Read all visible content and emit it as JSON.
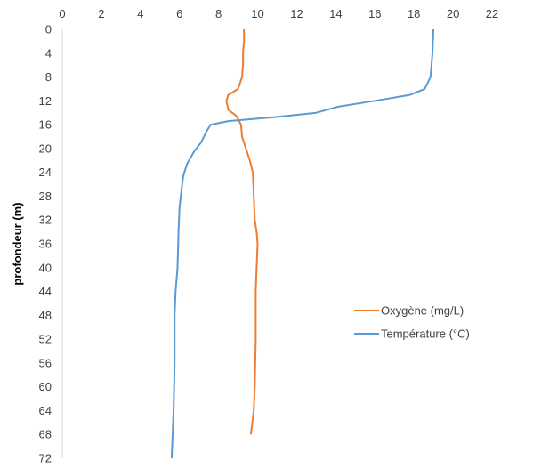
{
  "chart_data": {
    "type": "line",
    "title": "",
    "xlabel": "",
    "ylabel": "profondeur (m)",
    "xlim": [
      0,
      22
    ],
    "ylim": [
      0,
      72
    ],
    "y_inverted": true,
    "x_axis_position": "top",
    "grid": false,
    "legend_position": "right-middle",
    "x_ticks": [
      "0",
      "2",
      "4",
      "6",
      "8",
      "10",
      "12",
      "14",
      "16",
      "18",
      "20",
      "22"
    ],
    "y_ticks": [
      "0",
      "4",
      "8",
      "12",
      "16",
      "20",
      "24",
      "28",
      "32",
      "36",
      "40",
      "44",
      "48",
      "52",
      "56",
      "60",
      "64",
      "68",
      "72"
    ],
    "series": [
      {
        "name": "Oxygène (mg/L)",
        "color": "#ED7D31",
        "points": [
          {
            "x": 9.3,
            "y": 0
          },
          {
            "x": 9.3,
            "y": 2
          },
          {
            "x": 9.25,
            "y": 4
          },
          {
            "x": 9.25,
            "y": 6
          },
          {
            "x": 9.2,
            "y": 8
          },
          {
            "x": 9.0,
            "y": 10
          },
          {
            "x": 8.5,
            "y": 11
          },
          {
            "x": 8.4,
            "y": 12
          },
          {
            "x": 8.5,
            "y": 13.5
          },
          {
            "x": 8.9,
            "y": 14.5
          },
          {
            "x": 9.15,
            "y": 16
          },
          {
            "x": 9.2,
            "y": 18
          },
          {
            "x": 9.4,
            "y": 20
          },
          {
            "x": 9.6,
            "y": 22
          },
          {
            "x": 9.75,
            "y": 24
          },
          {
            "x": 9.8,
            "y": 28
          },
          {
            "x": 9.85,
            "y": 32
          },
          {
            "x": 9.95,
            "y": 34
          },
          {
            "x": 10.0,
            "y": 36
          },
          {
            "x": 9.95,
            "y": 40
          },
          {
            "x": 9.9,
            "y": 44
          },
          {
            "x": 9.9,
            "y": 52
          },
          {
            "x": 9.85,
            "y": 60
          },
          {
            "x": 9.8,
            "y": 64
          },
          {
            "x": 9.65,
            "y": 68
          }
        ]
      },
      {
        "name": "Température (°C)",
        "color": "#5B9BD5",
        "points": [
          {
            "x": 19.0,
            "y": 0
          },
          {
            "x": 18.95,
            "y": 4
          },
          {
            "x": 18.9,
            "y": 6
          },
          {
            "x": 18.85,
            "y": 8
          },
          {
            "x": 18.55,
            "y": 10
          },
          {
            "x": 17.8,
            "y": 11
          },
          {
            "x": 16.0,
            "y": 12
          },
          {
            "x": 14.1,
            "y": 13
          },
          {
            "x": 13.0,
            "y": 14
          },
          {
            "x": 11.0,
            "y": 14.7
          },
          {
            "x": 8.5,
            "y": 15.4
          },
          {
            "x": 7.6,
            "y": 16
          },
          {
            "x": 7.4,
            "y": 17
          },
          {
            "x": 7.1,
            "y": 19
          },
          {
            "x": 6.75,
            "y": 20.5
          },
          {
            "x": 6.4,
            "y": 22.5
          },
          {
            "x": 6.2,
            "y": 24.5
          },
          {
            "x": 6.1,
            "y": 27
          },
          {
            "x": 6.0,
            "y": 30
          },
          {
            "x": 5.95,
            "y": 34
          },
          {
            "x": 5.9,
            "y": 40
          },
          {
            "x": 5.8,
            "y": 44
          },
          {
            "x": 5.75,
            "y": 48
          },
          {
            "x": 5.75,
            "y": 56
          },
          {
            "x": 5.7,
            "y": 64
          },
          {
            "x": 5.65,
            "y": 68
          },
          {
            "x": 5.6,
            "y": 72
          }
        ]
      }
    ]
  }
}
